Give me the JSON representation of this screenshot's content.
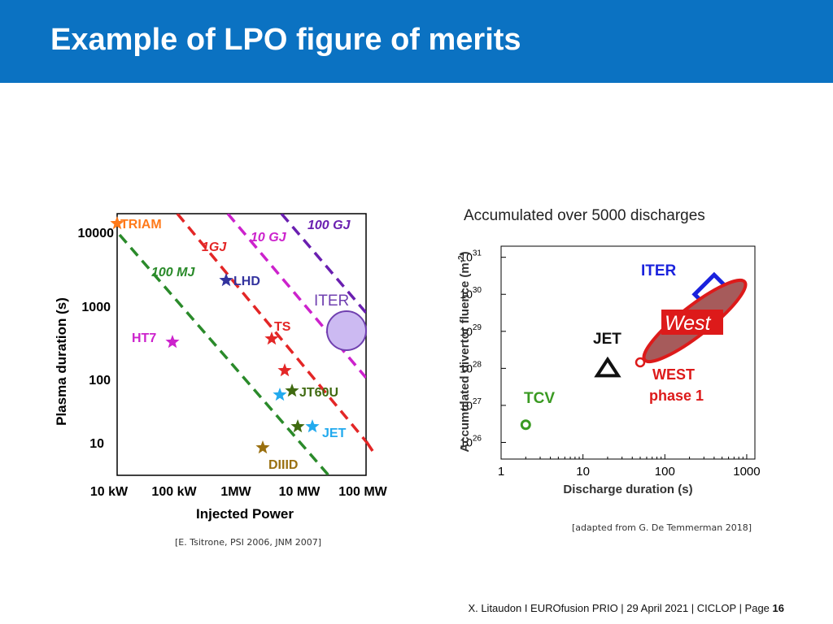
{
  "slide": {
    "title": "Example of LPO figure of merits",
    "accent_color": "#0b72c2"
  },
  "captions": {
    "left": "[E. Tsitrone, PSI 2006, JNM 2007]",
    "right": "[adapted from G. De Temmerman 2018]"
  },
  "footer": {
    "text": "X. Litaudon I EUROfusion PRIO | 29 April  2021 | CICLOP | Page ",
    "page": "16"
  },
  "chart_data": [
    {
      "type": "scatter",
      "xlabel": "Injected Power",
      "ylabel": "Plasma duration (s)",
      "x_scale": "log",
      "y_scale": "log",
      "x_ticks": [
        "10 kW",
        "100 kW",
        "1MW",
        "10 MW",
        "100 MW"
      ],
      "y_ticks": [
        "10",
        "100",
        "1000",
        "10000"
      ],
      "energy_lines": [
        {
          "label": "100 MJ",
          "color": "#2a8a2a"
        },
        {
          "label": "1GJ",
          "color": "#e32626"
        },
        {
          "label": "10 GJ",
          "color": "#cc22cc"
        },
        {
          "label": "100 GJ",
          "color": "#6a1fb0"
        }
      ],
      "points": [
        {
          "label": "TRIAM",
          "color": "#ff7a1a",
          "shape": "star"
        },
        {
          "label": "LHD",
          "color": "#33339e",
          "shape": "star"
        },
        {
          "label": "HT7",
          "color": "#cc22cc",
          "shape": "star"
        },
        {
          "label": "TS",
          "color": "#e32626",
          "shape": "star"
        },
        {
          "label": "",
          "color": "#e32626",
          "shape": "star"
        },
        {
          "label": "JT60U",
          "color": "#3f6a10",
          "shape": "star"
        },
        {
          "label": "",
          "color": "#22aaee",
          "shape": "star"
        },
        {
          "label": "",
          "color": "#3f6a10",
          "shape": "star"
        },
        {
          "label": "JET",
          "color": "#22aaee",
          "shape": "star"
        },
        {
          "label": "DIIID",
          "color": "#9a7010",
          "shape": "star"
        },
        {
          "label": "ITER",
          "color": "#7040b0",
          "shape": "circle"
        }
      ]
    },
    {
      "type": "scatter",
      "title": "Accumulated over 5000 discharges",
      "xlabel": "Discharge duration (s)",
      "ylabel": "Accumulated divertor fluence (m",
      "ylabel_sup": "-2",
      "ylabel_end": ")",
      "x_scale": "log",
      "y_scale": "log",
      "x_ticks": [
        "1",
        "10",
        "100",
        "1000"
      ],
      "y_ticks": [
        "26",
        "27",
        "28",
        "29",
        "30",
        "31"
      ],
      "y_tick_base": "10",
      "points": [
        {
          "label": "TCV",
          "x": 2,
          "y": 3e+26,
          "color": "#3a9a22",
          "shape": "circle"
        },
        {
          "label": "JET",
          "x": 20,
          "y": 1e+28,
          "color": "#111111",
          "shape": "triangle"
        },
        {
          "label": "ITER",
          "x": 400,
          "y": 1e+30,
          "color": "#1a22dd",
          "shape": "diamond"
        }
      ],
      "regions": [
        {
          "label_line1": "WEST",
          "label_line2": "phase 1",
          "logo_text": "West",
          "x_range": [
            45,
            950
          ],
          "y_range": [
            1.2e+28,
            3e+30
          ],
          "color": "#dd1a1a"
        }
      ]
    }
  ]
}
